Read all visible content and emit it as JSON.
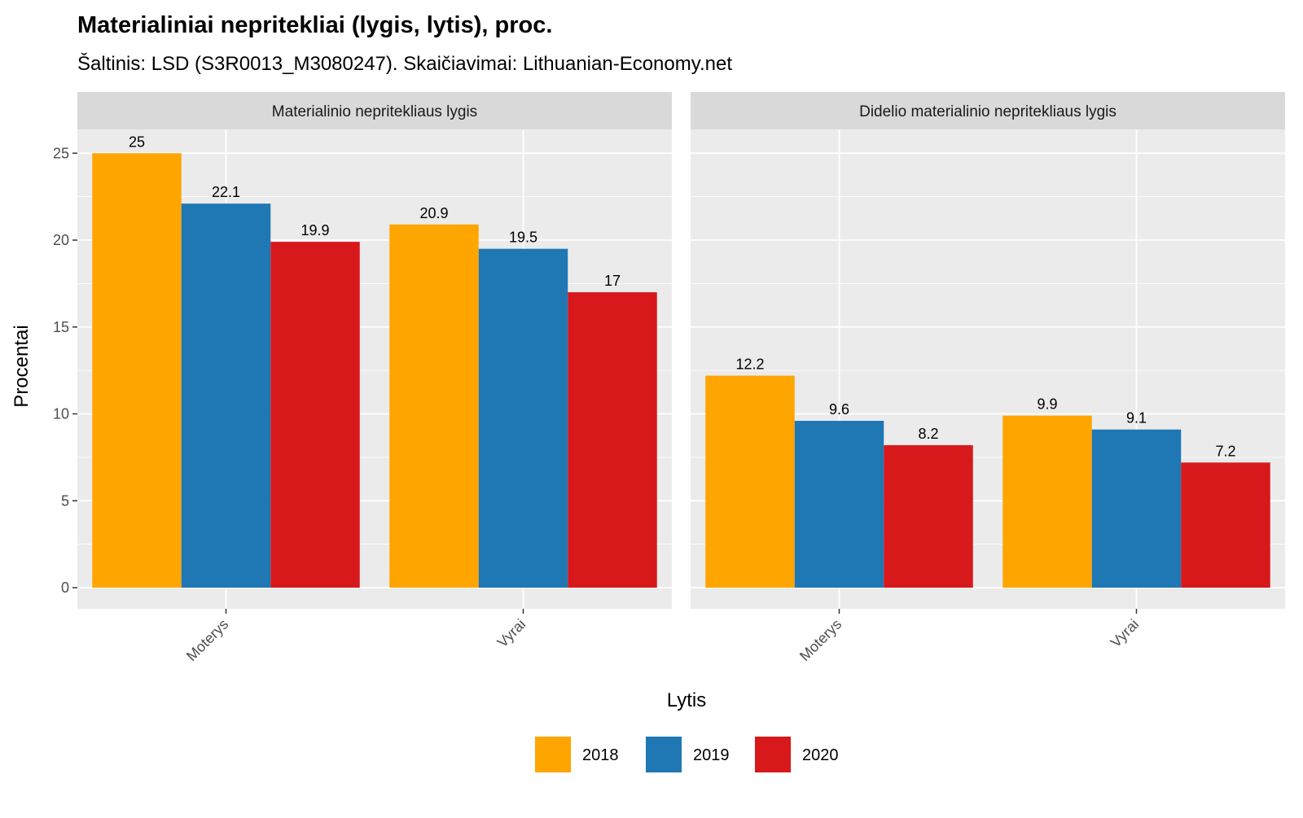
{
  "chart_data": {
    "type": "bar",
    "title": "Materialiniai nepritekliai (lygis, lytis), proc.",
    "subtitle": "Šaltinis: LSD (S3R0013_M3080247). Skaičiavimai: Lithuanian-Economy.net",
    "xlabel": "Lytis",
    "ylabel": "Procentai",
    "ylim": [
      0,
      26.5
    ],
    "yticks": [
      0,
      5,
      10,
      15,
      20,
      25
    ],
    "grid": true,
    "legend_position": "bottom",
    "categories": [
      "Moterys",
      "Vyrai"
    ],
    "series_names": [
      "2018",
      "2019",
      "2020"
    ],
    "colors": {
      "2018": "#FFA500",
      "2019": "#1F77B4",
      "2020": "#D7191C"
    },
    "panels": [
      {
        "title": "Materialinio nepritekliaus lygis",
        "values": {
          "Moterys": [
            25,
            22.1,
            19.9
          ],
          "Vyrai": [
            20.9,
            19.5,
            17
          ]
        }
      },
      {
        "title": "Didelio materialinio nepritekliaus lygis",
        "values": {
          "Moterys": [
            12.2,
            9.6,
            8.2
          ],
          "Vyrai": [
            9.9,
            9.1,
            7.2
          ]
        }
      }
    ]
  }
}
